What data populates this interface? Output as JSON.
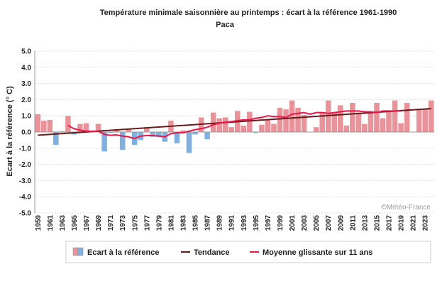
{
  "title": "Température minimale saisonnière au printemps : écart à la référence 1961-1990",
  "subtitle": "Paca",
  "credit": "©Météo-France",
  "chart_data": {
    "type": "bar",
    "ylabel": "Ecart à la référence (° C)",
    "ylim": [
      -5.0,
      5.0
    ],
    "yticks": [
      "5.0",
      "4.0",
      "3.0",
      "2.0",
      "1.0",
      "0.0",
      "-1.0",
      "-2.0",
      "-3.0",
      "-4.0",
      "-5.0"
    ],
    "ytick_values": [
      5,
      4,
      3,
      2,
      1,
      0,
      -1,
      -2,
      -3,
      -4,
      -5
    ],
    "x": [
      1959,
      1960,
      1961,
      1962,
      1963,
      1964,
      1965,
      1966,
      1967,
      1968,
      1969,
      1970,
      1971,
      1972,
      1973,
      1974,
      1975,
      1976,
      1977,
      1978,
      1979,
      1980,
      1981,
      1982,
      1983,
      1984,
      1985,
      1986,
      1987,
      1988,
      1989,
      1990,
      1991,
      1992,
      1993,
      1994,
      1995,
      1996,
      1997,
      1998,
      1999,
      2000,
      2001,
      2002,
      2003,
      2004,
      2005,
      2006,
      2007,
      2008,
      2009,
      2010,
      2011,
      2012,
      2013,
      2014,
      2015,
      2016,
      2017,
      2018,
      2019,
      2020,
      2021,
      2022,
      2023,
      2024
    ],
    "xticks": [
      "1959",
      "1961",
      "1963",
      "1965",
      "1967",
      "1969",
      "1971",
      "1973",
      "1975",
      "1977",
      "1979",
      "1981",
      "1983",
      "1985",
      "1987",
      "1989",
      "1991",
      "1993",
      "1995",
      "1997",
      "1999",
      "2001",
      "2003",
      "2005",
      "2007",
      "2009",
      "2011",
      "2013",
      "2015",
      "2017",
      "2019",
      "2021",
      "2023"
    ],
    "series": [
      {
        "name": "Ecart à la référence",
        "type": "bar",
        "positive_color": "#e8939a",
        "negative_color": "#7fb0e0",
        "values": [
          1.1,
          0.7,
          0.75,
          -0.8,
          0.05,
          1.0,
          -0.15,
          0.5,
          0.55,
          0.0,
          0.5,
          -1.2,
          -0.05,
          0.1,
          -1.1,
          0.2,
          -0.8,
          -0.5,
          0.3,
          -0.3,
          -0.3,
          -0.6,
          0.7,
          -0.7,
          0.1,
          -1.3,
          -0.15,
          0.9,
          -0.45,
          1.2,
          0.85,
          0.9,
          0.3,
          1.3,
          0.4,
          1.25,
          -0.05,
          0.45,
          0.75,
          0.5,
          1.5,
          1.4,
          1.95,
          1.5,
          1.05,
          0.0,
          0.3,
          1.2,
          1.95,
          1.2,
          1.65,
          0.4,
          1.8,
          1.2,
          0.5,
          1.2,
          1.8,
          0.85,
          1.25,
          1.95,
          0.55,
          1.8,
          0.0,
          1.4,
          1.4,
          1.95
        ]
      },
      {
        "name": "Tendance",
        "type": "line",
        "color": "#6b1a1a",
        "start": [
          1959,
          -0.2
        ],
        "end": [
          2024,
          1.45
        ]
      },
      {
        "name": "Moyenne glissante sur 11 ans",
        "type": "line",
        "color": "#e8174a",
        "x": [
          1964,
          1965,
          1966,
          1967,
          1968,
          1969,
          1970,
          1971,
          1972,
          1973,
          1974,
          1975,
          1976,
          1977,
          1978,
          1979,
          1980,
          1981,
          1982,
          1983,
          1984,
          1985,
          1986,
          1987,
          1988,
          1989,
          1990,
          1991,
          1992,
          1993,
          1994,
          1995,
          1996,
          1997,
          1998,
          1999,
          2000,
          2001,
          2002,
          2003,
          2004,
          2005,
          2006,
          2007,
          2008,
          2009,
          2010,
          2011,
          2012,
          2013,
          2014,
          2015,
          2016,
          2017,
          2018,
          2019
        ],
        "values": [
          0.4,
          0.2,
          0.12,
          0.05,
          0.05,
          0.05,
          -0.15,
          -0.2,
          -0.18,
          -0.25,
          -0.3,
          -0.4,
          -0.25,
          -0.22,
          -0.22,
          -0.25,
          -0.3,
          -0.1,
          -0.05,
          -0.05,
          0.05,
          0.15,
          0.2,
          0.3,
          0.45,
          0.55,
          0.6,
          0.65,
          0.7,
          0.75,
          0.75,
          0.85,
          0.9,
          1.0,
          0.95,
          0.95,
          0.9,
          1.1,
          1.15,
          1.2,
          1.1,
          1.2,
          1.2,
          1.15,
          1.2,
          1.25,
          1.3,
          1.3,
          1.3,
          1.25,
          1.25,
          1.2,
          1.3,
          1.3,
          1.3,
          1.3
        ]
      }
    ],
    "legend": {
      "position": "bottom",
      "items": [
        {
          "label": "Ecart à la référence",
          "kind": "box"
        },
        {
          "label": "Tendance",
          "kind": "line",
          "color": "#6b1a1a"
        },
        {
          "label": "Moyenne glissante sur 11 ans",
          "kind": "line",
          "color": "#e8174a"
        }
      ]
    },
    "grid": true
  }
}
